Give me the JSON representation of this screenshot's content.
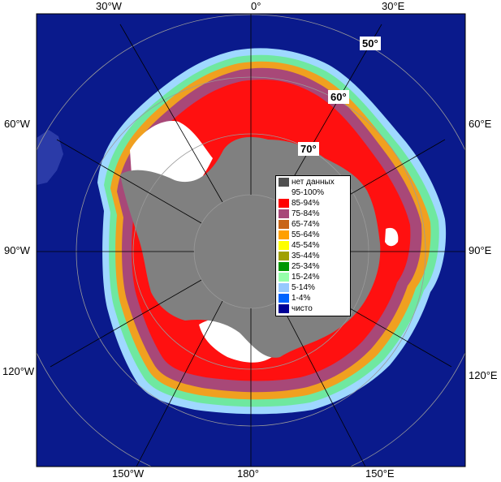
{
  "map": {
    "ocean_color": "#0a1a8c",
    "land_color": "#808080",
    "other_land_color": "#1e2a9e",
    "grid_color": "#9a9a9a",
    "ring_colors": [
      "#0a1a8c",
      "#9fd8ff",
      "#7fffb0",
      "#c8e64a",
      "#f0a020",
      "#a84878",
      "#ff1010",
      "#ffffff"
    ]
  },
  "longitude_labels": {
    "top": [
      "30°W",
      "0°",
      "30°E"
    ],
    "left": [
      "60°W",
      "90°W",
      "120°W"
    ],
    "right": [
      "60°E",
      "90°E",
      "120°E"
    ],
    "bottom": [
      "150°W",
      "180°",
      "150°E"
    ]
  },
  "latitude_labels": [
    "50°",
    "60°",
    "70°"
  ],
  "legend": {
    "items": [
      {
        "label": "нет данных",
        "color": "#505050"
      },
      {
        "label": "95-100%",
        "color": "#ffffff"
      },
      {
        "label": "85-94%",
        "color": "#ff0000"
      },
      {
        "label": "75-84%",
        "color": "#a84878"
      },
      {
        "label": "65-74%",
        "color": "#c86418"
      },
      {
        "label": "55-64%",
        "color": "#ffa000"
      },
      {
        "label": "45-54%",
        "color": "#ffff00"
      },
      {
        "label": "35-44%",
        "color": "#a0a000"
      },
      {
        "label": "25-34%",
        "color": "#009600"
      },
      {
        "label": "15-24%",
        "color": "#96ffaa"
      },
      {
        "label": "5-14%",
        "color": "#96c8ff"
      },
      {
        "label": "1-4%",
        "color": "#0064ff"
      },
      {
        "label": "чисто",
        "color": "#000096"
      }
    ]
  }
}
